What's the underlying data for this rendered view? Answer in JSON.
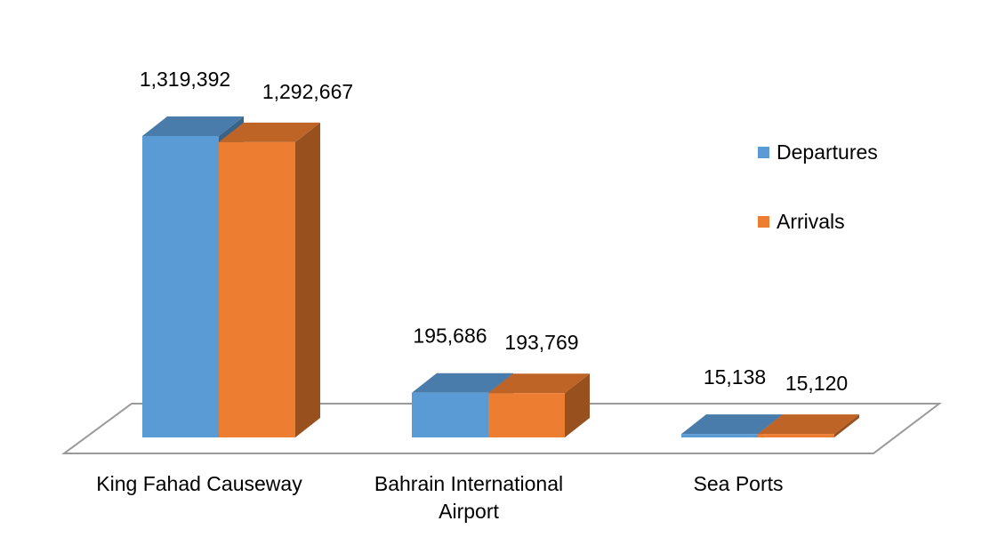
{
  "chart_data": {
    "type": "bar",
    "categories": [
      {
        "line1": "King Fahad Causeway",
        "line2": ""
      },
      {
        "line1": "Bahrain International",
        "line2": "Airport"
      },
      {
        "line1": "Sea Ports",
        "line2": ""
      }
    ],
    "series": [
      {
        "name": "Departures",
        "color": "#5B9BD5",
        "values": [
          1319392,
          195686,
          15138
        ],
        "labels": [
          "1,319,392",
          "195,686",
          "15,138"
        ]
      },
      {
        "name": "Arrivals",
        "color": "#ED7D31",
        "values": [
          1292667,
          193769,
          15120
        ],
        "labels": [
          "1,292,667",
          "193,769",
          "15,120"
        ]
      }
    ],
    "title": "",
    "xlabel": "",
    "ylabel": "",
    "ylim": [
      0,
      1400000
    ],
    "grid": false,
    "style": "3d-clustered-column",
    "legend_position": "right"
  }
}
